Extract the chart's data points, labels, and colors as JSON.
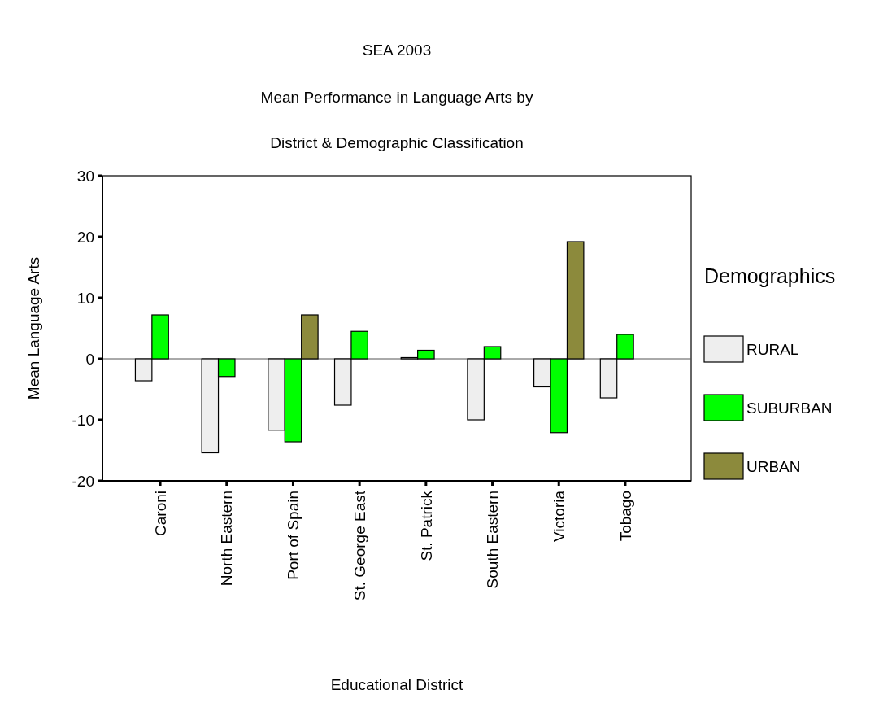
{
  "chart_data": {
    "type": "bar",
    "title": "SEA 2003",
    "subtitle": "Mean Performance in Language Arts by\nDistrict & Demographic Classification",
    "xlabel": "Educational District",
    "ylabel": "Mean Language Arts",
    "legend_title": "Demographics",
    "categories": [
      "Caroni",
      "North Eastern",
      "Port of Spain",
      "St. George East",
      "St. Patrick",
      "South Eastern",
      "Victoria",
      "Tobago"
    ],
    "series": [
      {
        "name": "RURAL",
        "color": "#eeeeee",
        "values": [
          -3.6,
          -15.4,
          -11.7,
          -7.6,
          0.2,
          -10.0,
          -4.6,
          -6.4
        ]
      },
      {
        "name": "SUBURBAN",
        "color": "#00ff00",
        "values": [
          7.2,
          -2.9,
          -13.6,
          4.5,
          1.4,
          2.0,
          -12.1,
          4.0
        ]
      },
      {
        "name": "URBAN",
        "color": "#8c8a3c",
        "values": [
          null,
          null,
          7.2,
          null,
          null,
          null,
          19.2,
          null
        ]
      }
    ],
    "ylim": [
      -20,
      30
    ],
    "yticks": [
      -20,
      -10,
      0,
      10,
      20,
      30
    ],
    "ref_lines": [
      {
        "axis": "y",
        "value": 0,
        "color": "#555555"
      }
    ],
    "legend": "right"
  }
}
